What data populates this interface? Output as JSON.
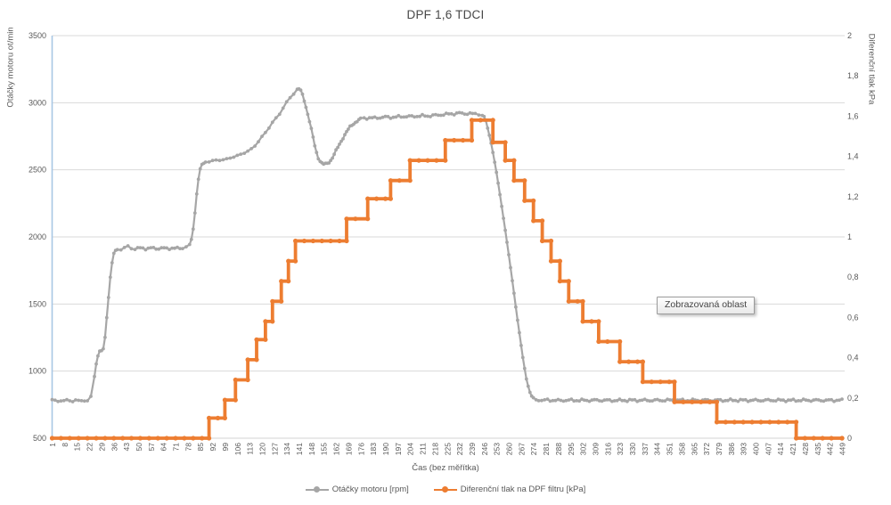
{
  "title": "DPF 1,6 TDCI",
  "tooltip": {
    "label": "Zobrazovaná oblast"
  },
  "legend": {
    "items": [
      {
        "label": "Otáčky motoru [rpm]",
        "color": "#A6A6A6"
      },
      {
        "label": "Diferenční tlak na DPF filtru [kPa]",
        "color": "#ED7D31"
      }
    ]
  },
  "colors": {
    "rpm_series": "#A6A6A6",
    "pressure_series": "#ED7D31",
    "gridline": "#D9D9D9",
    "axis_text": "#595959",
    "left_axis_line": "#A8C7E4",
    "bottom_axis_line": "#D3D3D3"
  },
  "chart_data": {
    "type": "line",
    "title": "DPF 1,6 TDCI",
    "xlabel": "Čas (bez měřítka)",
    "ylabel_left": "Otáčky motoru ot/min",
    "ylabel_right": "Diferenční tlak kPa",
    "grid": true,
    "legend_position": "bottom",
    "x_range": [
      1,
      449
    ],
    "x_ticks": [
      1,
      8,
      15,
      22,
      29,
      36,
      43,
      50,
      57,
      64,
      71,
      78,
      85,
      92,
      99,
      106,
      113,
      120,
      127,
      134,
      141,
      148,
      155,
      162,
      169,
      176,
      183,
      190,
      197,
      204,
      211,
      218,
      225,
      232,
      239,
      246,
      253,
      260,
      267,
      274,
      281,
      288,
      295,
      302,
      309,
      316,
      323,
      330,
      337,
      344,
      351,
      358,
      365,
      372,
      379,
      386,
      393,
      400,
      407,
      414,
      421,
      428,
      435,
      442,
      449
    ],
    "y_left": {
      "min": 500,
      "max": 3500,
      "tick_step": 500,
      "tick_labels": [
        "500",
        "1000",
        "1500",
        "2000",
        "2500",
        "3000",
        "3500"
      ]
    },
    "y_right": {
      "min": 0,
      "max": 2,
      "tick_step": 0.2,
      "tick_labels": [
        "0",
        "0,2",
        "0,4",
        "0,6",
        "0,8",
        "1",
        "1,2",
        "1,4",
        "1,6",
        "1,8",
        "2"
      ]
    },
    "series": [
      {
        "name": "Otáčky motoru [rpm]",
        "axis": "left",
        "color": "#A6A6A6",
        "style": "line-markers",
        "points": [
          [
            1,
            780
          ],
          [
            6,
            779
          ],
          [
            11,
            781
          ],
          [
            16,
            779
          ],
          [
            21,
            782
          ],
          [
            23,
            810
          ],
          [
            25,
            960
          ],
          [
            26,
            1060
          ],
          [
            27,
            1120
          ],
          [
            28,
            1145
          ],
          [
            29,
            1150
          ],
          [
            30,
            1165
          ],
          [
            31,
            1250
          ],
          [
            32,
            1400
          ],
          [
            33,
            1550
          ],
          [
            34,
            1700
          ],
          [
            35,
            1810
          ],
          [
            36,
            1870
          ],
          [
            37,
            1895
          ],
          [
            38,
            1905
          ],
          [
            40,
            1912
          ],
          [
            42,
            1918
          ],
          [
            44,
            1926
          ],
          [
            46,
            1918
          ],
          [
            48,
            1912
          ],
          [
            51,
            1917
          ],
          [
            54,
            1913
          ],
          [
            57,
            1917
          ],
          [
            60,
            1913
          ],
          [
            63,
            1917
          ],
          [
            66,
            1913
          ],
          [
            69,
            1917
          ],
          [
            72,
            1914
          ],
          [
            75,
            1918
          ],
          [
            77,
            1922
          ],
          [
            79,
            1940
          ],
          [
            80,
            1980
          ],
          [
            81,
            2060
          ],
          [
            82,
            2180
          ],
          [
            83,
            2320
          ],
          [
            84,
            2430
          ],
          [
            85,
            2500
          ],
          [
            86,
            2535
          ],
          [
            87,
            2550
          ],
          [
            88,
            2558
          ],
          [
            90,
            2563
          ],
          [
            92,
            2567
          ],
          [
            94,
            2570
          ],
          [
            96,
            2573
          ],
          [
            98,
            2576
          ],
          [
            100,
            2580
          ],
          [
            102,
            2588
          ],
          [
            104,
            2596
          ],
          [
            106,
            2606
          ],
          [
            108,
            2616
          ],
          [
            110,
            2626
          ],
          [
            112,
            2638
          ],
          [
            114,
            2656
          ],
          [
            116,
            2680
          ],
          [
            118,
            2710
          ],
          [
            120,
            2745
          ],
          [
            122,
            2780
          ],
          [
            124,
            2815
          ],
          [
            126,
            2850
          ],
          [
            128,
            2885
          ],
          [
            130,
            2920
          ],
          [
            132,
            2960
          ],
          [
            134,
            3000
          ],
          [
            136,
            3040
          ],
          [
            138,
            3070
          ],
          [
            140,
            3095
          ],
          [
            141,
            3100
          ],
          [
            142,
            3090
          ],
          [
            143,
            3060
          ],
          [
            144,
            3020
          ],
          [
            145,
            2970
          ],
          [
            146,
            2915
          ],
          [
            147,
            2860
          ],
          [
            148,
            2800
          ],
          [
            149,
            2740
          ],
          [
            150,
            2680
          ],
          [
            151,
            2630
          ],
          [
            152,
            2590
          ],
          [
            153,
            2565
          ],
          [
            154,
            2548
          ],
          [
            155,
            2540
          ],
          [
            156,
            2542
          ],
          [
            157,
            2548
          ],
          [
            158,
            2558
          ],
          [
            159,
            2572
          ],
          [
            160,
            2592
          ],
          [
            161,
            2615
          ],
          [
            162,
            2640
          ],
          [
            163,
            2665
          ],
          [
            164,
            2690
          ],
          [
            165,
            2715
          ],
          [
            166,
            2740
          ],
          [
            167,
            2762
          ],
          [
            168,
            2782
          ],
          [
            169,
            2800
          ],
          [
            170,
            2818
          ],
          [
            171,
            2832
          ],
          [
            172,
            2845
          ],
          [
            173,
            2856
          ],
          [
            174,
            2865
          ],
          [
            175,
            2872
          ],
          [
            176,
            2878
          ],
          [
            178,
            2884
          ],
          [
            181,
            2888
          ],
          [
            184,
            2886
          ],
          [
            187,
            2890
          ],
          [
            190,
            2893
          ],
          [
            193,
            2891
          ],
          [
            196,
            2894
          ],
          [
            199,
            2896
          ],
          [
            202,
            2898
          ],
          [
            205,
            2897
          ],
          [
            208,
            2900
          ],
          [
            211,
            2902
          ],
          [
            214,
            2901
          ],
          [
            217,
            2905
          ],
          [
            220,
            2908
          ],
          [
            223,
            2912
          ],
          [
            226,
            2916
          ],
          [
            229,
            2918
          ],
          [
            232,
            2922
          ],
          [
            235,
            2920
          ],
          [
            238,
            2918
          ],
          [
            241,
            2917
          ],
          [
            243,
            2915
          ],
          [
            245,
            2905
          ],
          [
            246,
            2890
          ],
          [
            247,
            2860
          ],
          [
            248,
            2815
          ],
          [
            249,
            2760
          ],
          [
            250,
            2700
          ],
          [
            251,
            2630
          ],
          [
            252,
            2555
          ],
          [
            253,
            2480
          ],
          [
            254,
            2400
          ],
          [
            255,
            2315
          ],
          [
            256,
            2230
          ],
          [
            257,
            2140
          ],
          [
            258,
            2050
          ],
          [
            259,
            1960
          ],
          [
            260,
            1865
          ],
          [
            261,
            1770
          ],
          [
            262,
            1675
          ],
          [
            263,
            1580
          ],
          [
            264,
            1480
          ],
          [
            265,
            1380
          ],
          [
            266,
            1285
          ],
          [
            267,
            1190
          ],
          [
            268,
            1100
          ],
          [
            269,
            1020
          ],
          [
            270,
            950
          ],
          [
            271,
            890
          ],
          [
            272,
            845
          ],
          [
            273,
            812
          ],
          [
            274,
            792
          ],
          [
            277,
            783
          ],
          [
            282,
            784
          ],
          [
            288,
            781
          ],
          [
            294,
            783
          ],
          [
            300,
            782
          ],
          [
            310,
            783
          ],
          [
            320,
            781
          ],
          [
            330,
            783
          ],
          [
            340,
            782
          ],
          [
            350,
            783
          ],
          [
            360,
            782
          ],
          [
            370,
            783
          ],
          [
            380,
            782
          ],
          [
            390,
            783
          ],
          [
            400,
            782
          ],
          [
            410,
            783
          ],
          [
            420,
            782
          ],
          [
            430,
            783
          ],
          [
            440,
            782
          ],
          [
            449,
            783
          ]
        ]
      },
      {
        "name": "Diferenční tlak na DPF filtru [kPa]",
        "axis": "right",
        "color": "#ED7D31",
        "style": "step",
        "points": [
          [
            1,
            0
          ],
          [
            90,
            0.1
          ],
          [
            99,
            0.19
          ],
          [
            105,
            0.29
          ],
          [
            112,
            0.39
          ],
          [
            117,
            0.49
          ],
          [
            122,
            0.58
          ],
          [
            126,
            0.68
          ],
          [
            131,
            0.78
          ],
          [
            135,
            0.88
          ],
          [
            139,
            0.98
          ],
          [
            168,
            1.09
          ],
          [
            180,
            1.19
          ],
          [
            193,
            1.28
          ],
          [
            204,
            1.38
          ],
          [
            224,
            1.48
          ],
          [
            239,
            1.58
          ],
          [
            251,
            1.47
          ],
          [
            258,
            1.38
          ],
          [
            263,
            1.28
          ],
          [
            269,
            1.18
          ],
          [
            274,
            1.08
          ],
          [
            279,
            0.98
          ],
          [
            284,
            0.88
          ],
          [
            289,
            0.78
          ],
          [
            294,
            0.68
          ],
          [
            302,
            0.58
          ],
          [
            311,
            0.48
          ],
          [
            323,
            0.38
          ],
          [
            336,
            0.28
          ],
          [
            354,
            0.18
          ],
          [
            378,
            0.08
          ],
          [
            423,
            0
          ],
          [
            449,
            0
          ]
        ]
      }
    ]
  }
}
